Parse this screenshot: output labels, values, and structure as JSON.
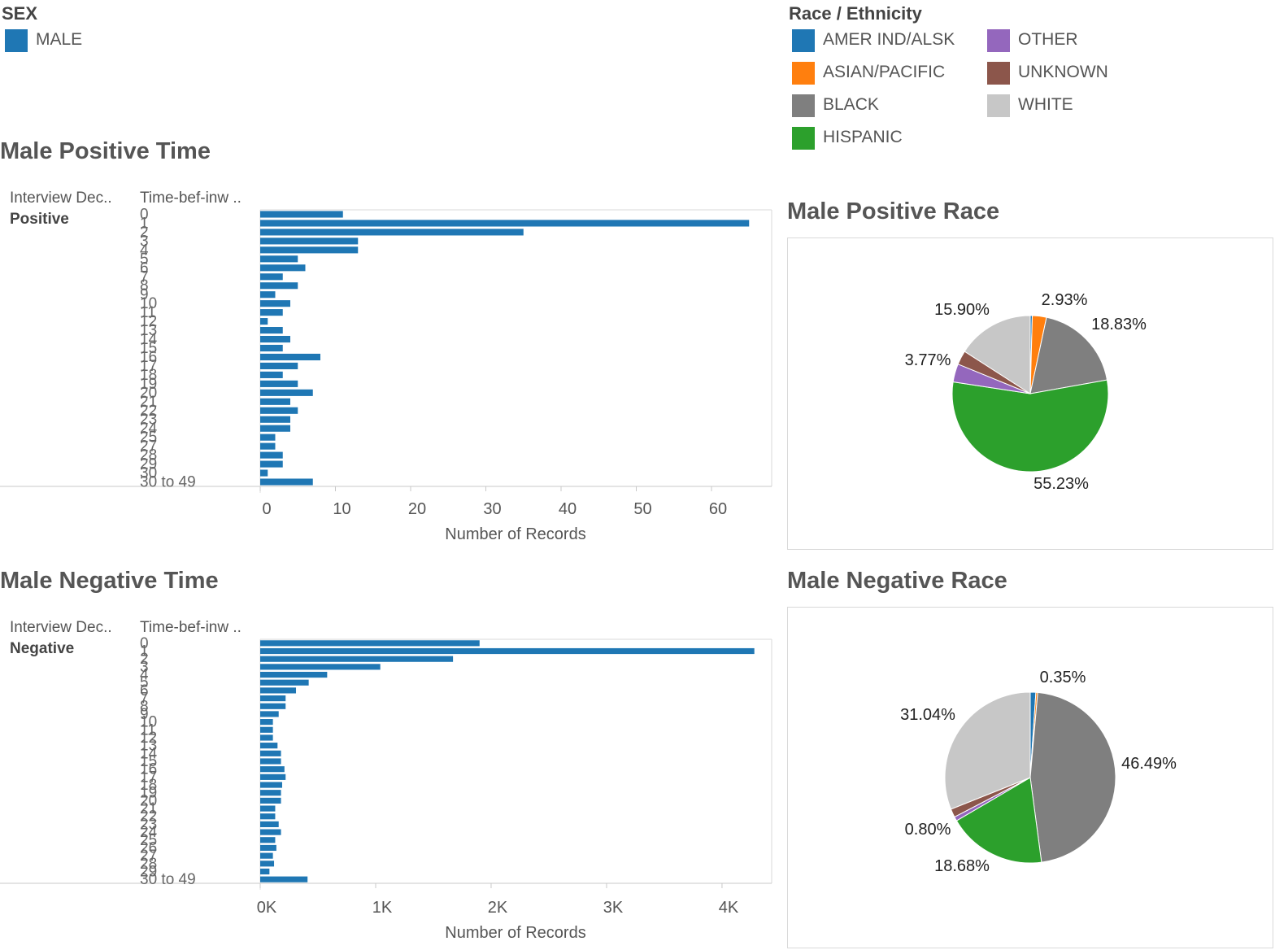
{
  "colors": {
    "amer_ind": "#1f77b4",
    "asian": "#ff7f0e",
    "black": "#7f7f7f",
    "hispanic": "#2ca02c",
    "other": "#9467bd",
    "unknown": "#8c564b",
    "white": "#c7c7c7",
    "male": "#1f77b4",
    "bar": "#1f77b4"
  },
  "legend_sex": {
    "title": "SEX",
    "items": [
      {
        "label": "MALE",
        "color": "#1f77b4"
      }
    ]
  },
  "legend_race": {
    "title": "Race / Ethnicity",
    "items": [
      {
        "label": "AMER IND/ALSK",
        "color": "#1f77b4"
      },
      {
        "label": "ASIAN/PACIFIC",
        "color": "#ff7f0e"
      },
      {
        "label": "BLACK",
        "color": "#7f7f7f"
      },
      {
        "label": "HISPANIC",
        "color": "#2ca02c"
      },
      {
        "label": "OTHER",
        "color": "#9467bd"
      },
      {
        "label": "UNKNOWN",
        "color": "#8c564b"
      },
      {
        "label": "WHITE",
        "color": "#c7c7c7"
      }
    ]
  },
  "bar_time_pos": {
    "title": "Male Positive Time",
    "col1": "Interview Dec..",
    "col2": "Time-bef-inw ..",
    "row_label": "Positive"
  },
  "bar_time_neg": {
    "title": "Male Negative Time",
    "col1": "Interview Dec..",
    "col2": "Time-bef-inw ..",
    "row_label": "Negative"
  },
  "pie_pos": {
    "title": "Male Positive Race"
  },
  "pie_neg": {
    "title": "Male Negative Race"
  },
  "chart_data": [
    {
      "id": "male-positive-time",
      "type": "bar",
      "orientation": "horizontal",
      "title": "Male Positive Time",
      "xlabel": "Number of Records",
      "ylabel": "Time-bef-inw ..",
      "xlim": [
        0,
        68
      ],
      "xticks": [
        0,
        10,
        20,
        30,
        40,
        50,
        60
      ],
      "xtick_labels": [
        "0",
        "10",
        "20",
        "30",
        "40",
        "50",
        "60"
      ],
      "categories": [
        "0",
        "1",
        "2",
        "3",
        "4",
        "5",
        "6",
        "7",
        "8",
        "9",
        "10",
        "11",
        "12",
        "13",
        "14",
        "15",
        "16",
        "17",
        "18",
        "19",
        "20",
        "21",
        "22",
        "23",
        "24",
        "25",
        "27",
        "28",
        "29",
        "30",
        "30 to 49"
      ],
      "values": [
        11,
        65,
        35,
        13,
        13,
        5,
        6,
        3,
        5,
        2,
        4,
        3,
        1,
        3,
        4,
        3,
        8,
        5,
        3,
        5,
        7,
        4,
        5,
        4,
        4,
        2,
        2,
        3,
        3,
        1,
        7
      ]
    },
    {
      "id": "male-negative-time",
      "type": "bar",
      "orientation": "horizontal",
      "title": "Male Negative Time",
      "xlabel": "Number of Records",
      "ylabel": "Time-bef-inw ..",
      "xlim": [
        0,
        4430
      ],
      "xticks": [
        0,
        1000,
        2000,
        3000,
        4000
      ],
      "xtick_labels": [
        "0K",
        "1K",
        "2K",
        "3K",
        "4K"
      ],
      "categories": [
        "0",
        "1",
        "2",
        "3",
        "4",
        "5",
        "6",
        "7",
        "8",
        "9",
        "10",
        "11",
        "12",
        "13",
        "14",
        "15",
        "16",
        "17",
        "18",
        "19",
        "20",
        "21",
        "22",
        "23",
        "24",
        "25",
        "26",
        "27",
        "28",
        "29",
        "30 to 49"
      ],
      "values": [
        1900,
        4280,
        1670,
        1040,
        580,
        420,
        310,
        220,
        220,
        160,
        110,
        110,
        110,
        150,
        180,
        180,
        210,
        220,
        190,
        180,
        180,
        130,
        130,
        160,
        180,
        130,
        140,
        110,
        120,
        80,
        410
      ]
    },
    {
      "id": "male-positive-race",
      "type": "pie",
      "title": "Male Positive Race",
      "slices": [
        {
          "name": "AMER IND/ALSK",
          "value": 0.42,
          "color": "#1f77b4",
          "label": ""
        },
        {
          "name": "ASIAN/PACIFIC",
          "value": 2.93,
          "color": "#ff7f0e",
          "label": "2.93%"
        },
        {
          "name": "BLACK",
          "value": 18.83,
          "color": "#7f7f7f",
          "label": "18.83%"
        },
        {
          "name": "HISPANIC",
          "value": 55.23,
          "color": "#2ca02c",
          "label": "55.23%"
        },
        {
          "name": "OTHER",
          "value": 3.77,
          "color": "#9467bd",
          "label": "3.77%"
        },
        {
          "name": "UNKNOWN",
          "value": 2.92,
          "color": "#8c564b",
          "label": ""
        },
        {
          "name": "WHITE",
          "value": 15.9,
          "color": "#c7c7c7",
          "label": "15.90%"
        }
      ]
    },
    {
      "id": "male-negative-race",
      "type": "pie",
      "title": "Male Negative Race",
      "slices": [
        {
          "name": "AMER IND/ALSK",
          "value": 1.05,
          "color": "#1f77b4",
          "label": ""
        },
        {
          "name": "ASIAN/PACIFIC",
          "value": 0.35,
          "color": "#ff7f0e",
          "label": "0.35%"
        },
        {
          "name": "BLACK",
          "value": 46.49,
          "color": "#7f7f7f",
          "label": "46.49%"
        },
        {
          "name": "HISPANIC",
          "value": 18.68,
          "color": "#2ca02c",
          "label": "18.68%"
        },
        {
          "name": "OTHER",
          "value": 0.8,
          "color": "#9467bd",
          "label": "0.80%"
        },
        {
          "name": "UNKNOWN",
          "value": 1.59,
          "color": "#8c564b",
          "label": ""
        },
        {
          "name": "WHITE",
          "value": 31.04,
          "color": "#c7c7c7",
          "label": "31.04%"
        }
      ]
    }
  ]
}
